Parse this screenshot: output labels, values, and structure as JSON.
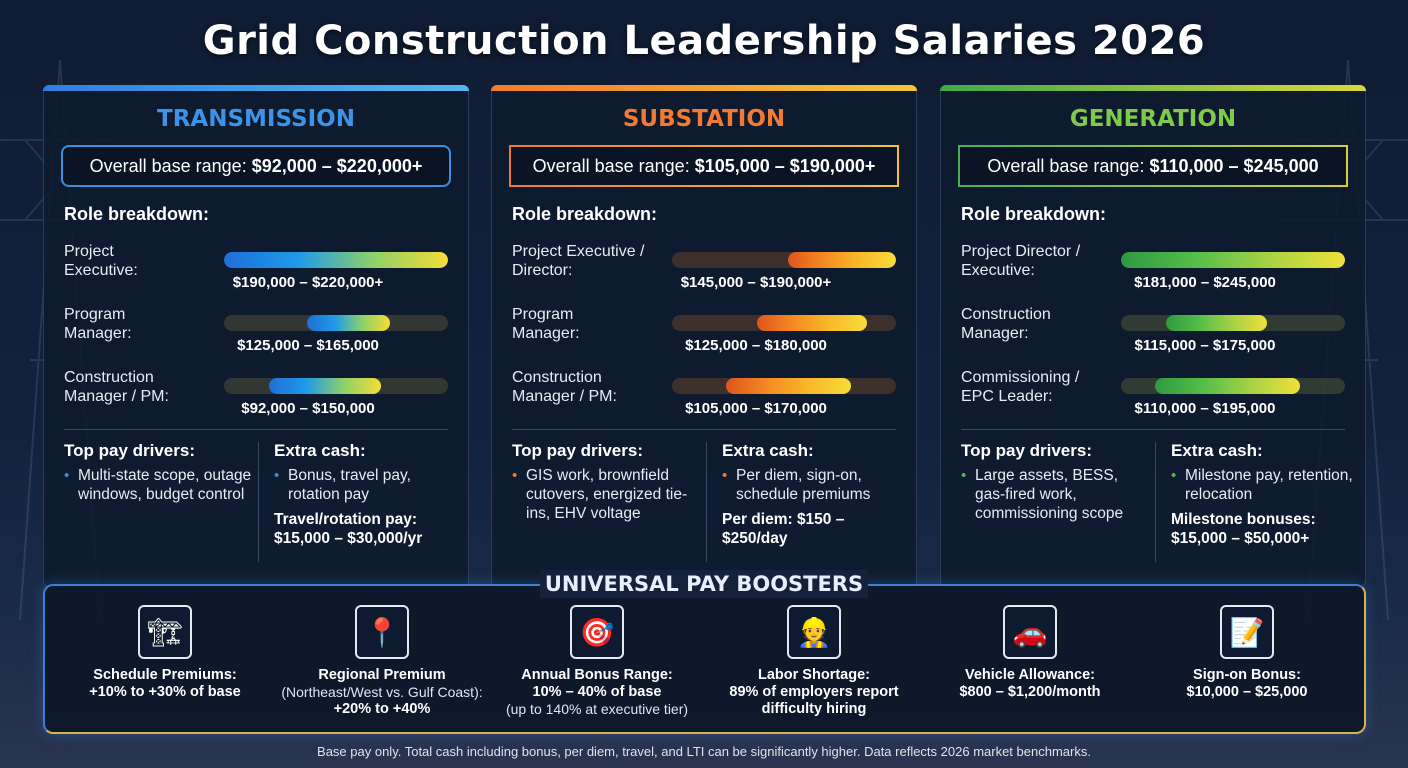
{
  "title": "Grid Construction Leadership Salaries 2026",
  "panels": [
    {
      "name": "TRANSMISSION",
      "range_label": "Overall base range:",
      "range_value": "$92,000 – $220,000+",
      "breakdown_title": "Role breakdown:",
      "roles": [
        {
          "label": "Project\nExecutive:",
          "range": "$190,000 – $220,000+",
          "from": 0.0,
          "to": 1.0
        },
        {
          "label": "Program\nManager:",
          "range": "$125,000 – $165,000",
          "from": 0.37,
          "to": 0.74
        },
        {
          "label": "Construction\nManager / PM:",
          "range": "$92,000 – $150,000",
          "from": 0.2,
          "to": 0.7
        }
      ],
      "drivers_title": "Top pay drivers:",
      "drivers": "Multi-state scope, outage windows, budget control",
      "extra_title": "Extra cash:",
      "extra": "Bonus, travel pay, rotation pay",
      "extra_bold": "Travel/rotation pay: $15,000 – $30,000/yr"
    },
    {
      "name": "SUBSTATION",
      "range_label": "Overall base range:",
      "range_value": "$105,000 – $190,000+",
      "breakdown_title": "Role breakdown:",
      "roles": [
        {
          "label": "Project Executive /\nDirector:",
          "range": "$145,000 – $190,000+",
          "from": 0.52,
          "to": 1.0
        },
        {
          "label": "Program\nManager:",
          "range": "$125,000 – $180,000",
          "from": 0.38,
          "to": 0.87
        },
        {
          "label": "Construction\nManager / PM:",
          "range": "$105,000 – $170,000",
          "from": 0.24,
          "to": 0.8
        }
      ],
      "drivers_title": "Top pay drivers:",
      "drivers": "GIS work, brownfield cutovers, energized tie-ins, EHV voltage",
      "extra_title": "Extra cash:",
      "extra": "Per diem, sign-on, schedule premiums",
      "extra_bold": "Per diem: $150 – $250/day"
    },
    {
      "name": "GENERATION",
      "range_label": "Overall base range:",
      "range_value": "$110,000 – $245,000",
      "breakdown_title": "Role breakdown:",
      "roles": [
        {
          "label": "Project Director /\nExecutive:",
          "range": "$181,000 – $245,000",
          "from": 0.0,
          "to": 1.0
        },
        {
          "label": "Construction\nManager:",
          "range": "$115,000 – $175,000",
          "from": 0.2,
          "to": 0.65
        },
        {
          "label": "Commissioning /\nEPC Leader:",
          "range": "$110,000 – $195,000",
          "from": 0.15,
          "to": 0.8
        }
      ],
      "drivers_title": "Top pay drivers:",
      "drivers": "Large assets, BESS, gas-fired work, commissioning scope",
      "extra_title": "Extra cash:",
      "extra": "Milestone pay, retention, relocation",
      "extra_bold": "Milestone bonuses: $15,000 – $50,000+"
    }
  ],
  "boosters": {
    "title": "UNIVERSAL PAY BOOSTERS",
    "items": [
      {
        "icon": "crane-icon",
        "glyph": "🏗",
        "l1": "Schedule Premiums:",
        "l2": "",
        "l3": "+10% to +30% of base"
      },
      {
        "icon": "map-pin-icon",
        "glyph": "📍",
        "l1": "Regional Premium",
        "l2": "(Northeast/West vs. Gulf Coast):",
        "l3": "+20% to +40%"
      },
      {
        "icon": "target-icon",
        "glyph": "🎯",
        "l1": "Annual Bonus Range:",
        "l2b": "10% – 40% of base",
        "l2": "(up to 140% at executive tier)",
        "l3": ""
      },
      {
        "icon": "worker-icon",
        "glyph": "👷",
        "l1": "Labor Shortage:",
        "l2": "",
        "l3": "89% of employers report difficulty hiring"
      },
      {
        "icon": "car-icon",
        "glyph": "🚗",
        "l1": "Vehicle Allowance:",
        "l2": "",
        "l3": "$800 – $1,200/month"
      },
      {
        "icon": "signature-icon",
        "glyph": "📝",
        "l1": "Sign-on Bonus:",
        "l2": "",
        "l3": "$10,000 – $25,000"
      }
    ]
  },
  "footer": "Base pay only. Total cash including bonus, per diem, travel, and LTI can be significantly higher. Data reflects 2026 market benchmarks.",
  "colors": {
    "transmission": "#3d93e8",
    "substation": "#f37a32",
    "generation": "#7fc94b"
  }
}
